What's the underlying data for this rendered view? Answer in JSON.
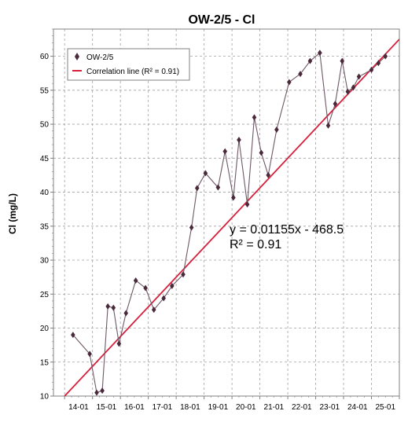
{
  "chart_data": {
    "type": "scatter",
    "title": "OW-2/5 - Cl",
    "ylabel": "Cl (mg/L)",
    "xlabel": "",
    "ylim": [
      10,
      64
    ],
    "y_ticks": [
      10,
      15,
      20,
      25,
      30,
      35,
      40,
      45,
      50,
      55,
      60
    ],
    "x_tick_labels": [
      "14-01",
      "15-01",
      "16-01",
      "17-01",
      "18-01",
      "19-01",
      "20-01",
      "21-01",
      "22-01",
      "23-01",
      "24-01",
      "25-01"
    ],
    "x_range_years": [
      2013.6,
      2026.0
    ],
    "grid": true,
    "legend_position": "top-left",
    "series": [
      {
        "name": "OW-2/5",
        "color": "#4a2a3a",
        "marker": "diamond",
        "x": [
          2014.3,
          2014.9,
          2015.15,
          2015.35,
          2015.55,
          2015.75,
          2015.95,
          2016.2,
          2016.55,
          2016.9,
          2017.2,
          2017.55,
          2017.85,
          2018.25,
          2018.55,
          2018.75,
          2019.05,
          2019.5,
          2019.75,
          2020.05,
          2020.25,
          2020.55,
          2020.8,
          2021.05,
          2021.3,
          2021.6,
          2022.05,
          2022.45,
          2022.8,
          2023.15,
          2023.45,
          2023.7,
          2023.95,
          2024.15,
          2024.35,
          2024.55,
          2025.0,
          2025.25,
          2025.5
        ],
        "values": [
          19,
          16.2,
          10.5,
          10.8,
          23.2,
          23,
          17.7,
          22.2,
          27,
          25.9,
          22.7,
          24.4,
          26.2,
          27.9,
          34.8,
          40.6,
          42.8,
          40.7,
          46,
          39.2,
          47.7,
          38.2,
          51,
          45.8,
          42.5,
          49.2,
          56.2,
          57.4,
          59.3,
          60.5,
          49.8,
          53,
          59.3,
          54.8,
          55.4,
          57,
          58,
          59,
          60
        ]
      }
    ],
    "trendline": {
      "name": "Correlation line (R² = 0.91)",
      "color": "#d6203c",
      "x": [
        2014.0,
        2026.0
      ],
      "values": [
        10,
        62.5
      ]
    },
    "annotation": {
      "equation": "y = 0.01155x - 468.5",
      "r2": "R² = 0.91"
    }
  }
}
